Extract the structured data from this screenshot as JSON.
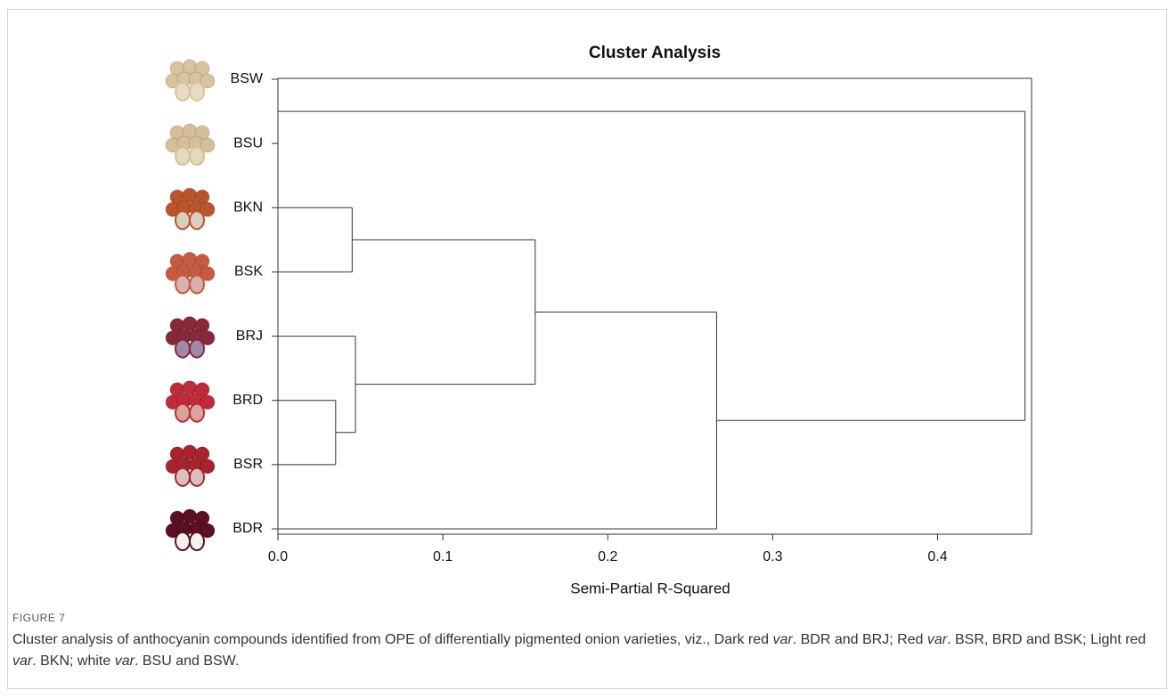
{
  "chart_data": {
    "type": "dendrogram",
    "title": "Cluster Analysis",
    "xlabel": "Semi-Partial R-Squared",
    "xlim": [
      0,
      0.457
    ],
    "xticks": [
      {
        "value": 0,
        "label": "0.0"
      },
      0.1,
      0.2,
      0.3,
      0.4
    ],
    "color": "#333333",
    "tree": {
      "height": 0.453,
      "children": [
        {
          "height": 0.0,
          "children": [
            {
              "label": "BSW"
            },
            {
              "label": "BSU"
            }
          ]
        },
        {
          "height": 0.266,
          "children": [
            {
              "height": 0.156,
              "children": [
                {
                  "height": 0.045,
                  "children": [
                    {
                      "label": "BKN"
                    },
                    {
                      "label": "BSK"
                    }
                  ]
                },
                {
                  "height": 0.047,
                  "children": [
                    {
                      "label": "BRJ"
                    },
                    {
                      "height": 0.035,
                      "children": [
                        {
                          "label": "BRD"
                        },
                        {
                          "label": "BSR"
                        }
                      ]
                    }
                  ]
                }
              ]
            },
            {
              "label": "BDR"
            }
          ]
        }
      ]
    }
  },
  "figure_label": "FIGURE 7",
  "caption": [
    "Cluster analysis of anthocyanin compounds identified from OPE of differentially pigmented onion varieties, viz., Dark red ",
    "var",
    ". BDR and BRJ; Red ",
    "var",
    ". BSR, BRD and BSK; Light red ",
    "var",
    ". BKN; white ",
    "var",
    ". BSU and BSW."
  ]
}
